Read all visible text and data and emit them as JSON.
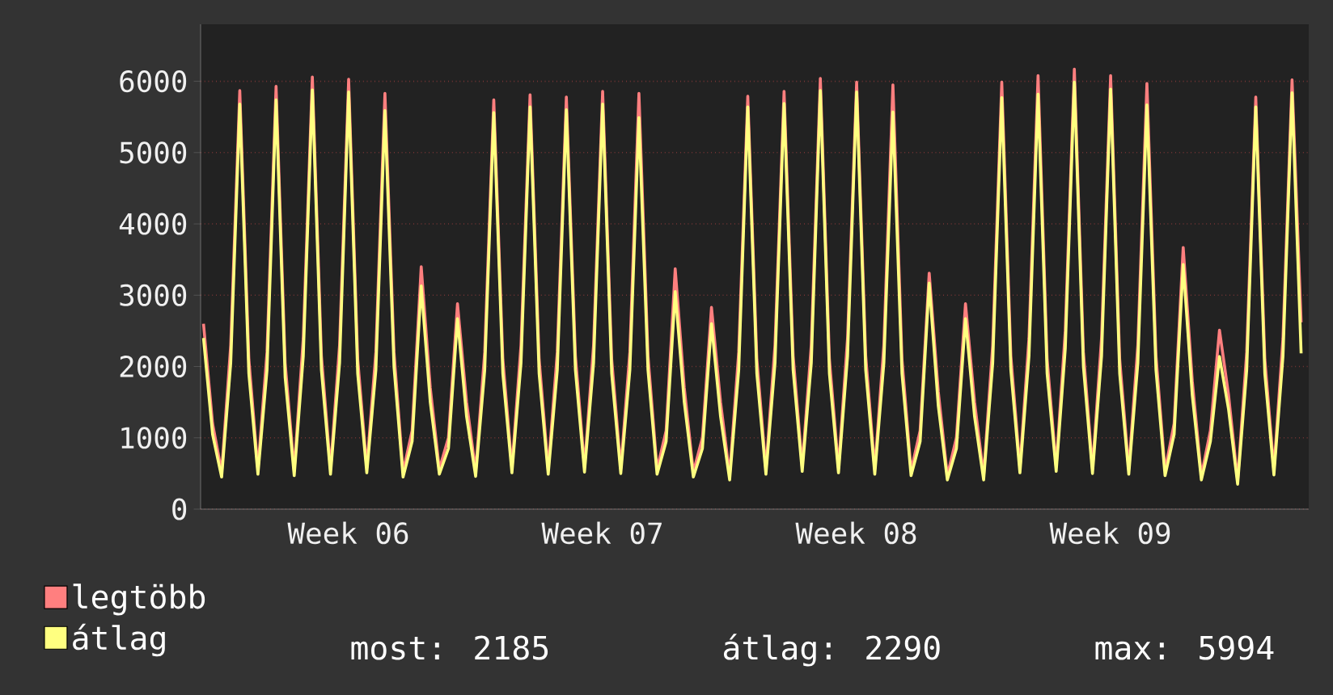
{
  "chart_data": {
    "type": "line",
    "categories": [
      null,
      null,
      null,
      null,
      null,
      null,
      null,
      null,
      null,
      null,
      null,
      null,
      null,
      null,
      null,
      null,
      "Week 06",
      null,
      null,
      null,
      null,
      null,
      null,
      null,
      null,
      null,
      null,
      null,
      null,
      null,
      null,
      null,
      null,
      null,
      null,
      null,
      null,
      null,
      null,
      null,
      null,
      null,
      null,
      null,
      "Week 07",
      null,
      null,
      null,
      null,
      null,
      null,
      null,
      null,
      null,
      null,
      null,
      null,
      null,
      null,
      null,
      null,
      null,
      null,
      null,
      null,
      null,
      null,
      null,
      null,
      null,
      null,
      null,
      "Week 08",
      null,
      null,
      null,
      null,
      null,
      null,
      null,
      null,
      null,
      null,
      null,
      null,
      null,
      null,
      null,
      null,
      null,
      null,
      null,
      null,
      null,
      null,
      null,
      null,
      null,
      null,
      null,
      "Week 09",
      null,
      null,
      null,
      null,
      null,
      null,
      null,
      null,
      null,
      null,
      null,
      null,
      null,
      null,
      null,
      null,
      null,
      null,
      null,
      null,
      null
    ],
    "series": [
      {
        "name": "legtöbb",
        "color": "#ff7f7f",
        "values": [
          2600,
          1200,
          520,
          2300,
          5870,
          2100,
          560,
          2200,
          5930,
          2050,
          540,
          2400,
          6060,
          2150,
          560,
          2300,
          6030,
          2100,
          580,
          2200,
          5830,
          2200,
          520,
          1100,
          3400,
          1700,
          560,
          1000,
          2880,
          1500,
          530,
          2200,
          5740,
          2100,
          580,
          2300,
          5810,
          2100,
          560,
          2200,
          5780,
          2150,
          590,
          2300,
          5860,
          2100,
          570,
          2200,
          5830,
          2150,
          560,
          1100,
          3370,
          1700,
          520,
          1000,
          2830,
          1500,
          480,
          2200,
          5790,
          2100,
          560,
          2300,
          5860,
          2150,
          600,
          2300,
          6040,
          2100,
          580,
          2400,
          5990,
          2150,
          560,
          2300,
          5950,
          2100,
          540,
          1100,
          3310,
          1650,
          470,
          1000,
          2880,
          1500,
          470,
          2300,
          5990,
          2150,
          580,
          2400,
          6080,
          2100,
          600,
          2500,
          6170,
          2200,
          570,
          2400,
          6080,
          2100,
          560,
          2300,
          5970,
          2150,
          540,
          1200,
          3670,
          1800,
          470,
          1100,
          2510,
          1600,
          400,
          2200,
          5780,
          2100,
          550,
          2400,
          6020,
          2620
        ]
      },
      {
        "name": "átlag",
        "color": "#ffff80",
        "values": [
          2400,
          1050,
          450,
          2050,
          5680,
          1900,
          490,
          1950,
          5740,
          1850,
          470,
          2150,
          5880,
          1950,
          490,
          2050,
          5850,
          1900,
          510,
          1950,
          5590,
          2000,
          450,
          950,
          3130,
          1500,
          490,
          850,
          2670,
          1300,
          460,
          1950,
          5560,
          1900,
          510,
          2050,
          5640,
          1900,
          490,
          1950,
          5600,
          1950,
          520,
          2050,
          5680,
          1900,
          500,
          1950,
          5490,
          1950,
          490,
          950,
          3050,
          1500,
          450,
          850,
          2600,
          1300,
          410,
          1950,
          5640,
          1900,
          490,
          2050,
          5690,
          1950,
          530,
          2050,
          5870,
          1900,
          510,
          2150,
          5850,
          1950,
          490,
          2050,
          5570,
          1900,
          470,
          950,
          3170,
          1450,
          410,
          850,
          2670,
          1300,
          410,
          2050,
          5770,
          1950,
          510,
          2150,
          5820,
          1900,
          530,
          2250,
          5990,
          2000,
          500,
          2150,
          5890,
          1900,
          490,
          2050,
          5670,
          1950,
          470,
          1050,
          3430,
          1600,
          410,
          950,
          2140,
          1400,
          350,
          1950,
          5640,
          1900,
          480,
          2150,
          5840,
          2185
        ]
      }
    ],
    "ylim": [
      0,
      6800
    ],
    "yticks": [
      0,
      1000,
      2000,
      3000,
      4000,
      5000,
      6000
    ],
    "grid": "y",
    "legend": "bottom left",
    "marker": "none",
    "line_style": "solid",
    "annotations": [
      "most: 2185",
      "átlag: 2290",
      "max: 5994"
    ]
  }
}
